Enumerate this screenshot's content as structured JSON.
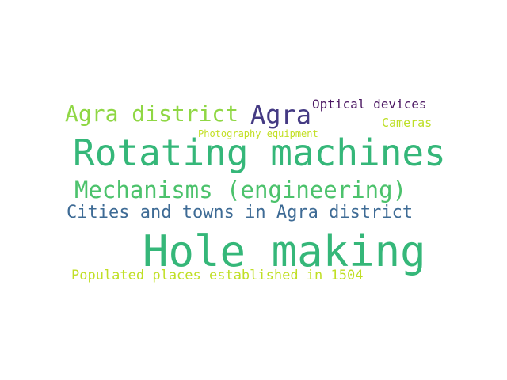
{
  "words": [
    {
      "text": "Hole making",
      "color": "#35b779"
    },
    {
      "text": "Rotating machines",
      "color": "#35b779"
    },
    {
      "text": "Mechanisms (engineering)",
      "color": "#4cc26c"
    },
    {
      "text": "Cities and towns in Agra district",
      "color": "#3e6b95"
    },
    {
      "text": "Agra district",
      "color": "#8fd744"
    },
    {
      "text": "Agra",
      "color": "#443a83"
    },
    {
      "text": "Optical devices",
      "color": "#4b1762"
    },
    {
      "text": "Cameras",
      "color": "#bddf26"
    },
    {
      "text": "Photography equipment",
      "color": "#c2df23"
    },
    {
      "text": "Populated places established in 1504",
      "color": "#c0df25"
    }
  ]
}
